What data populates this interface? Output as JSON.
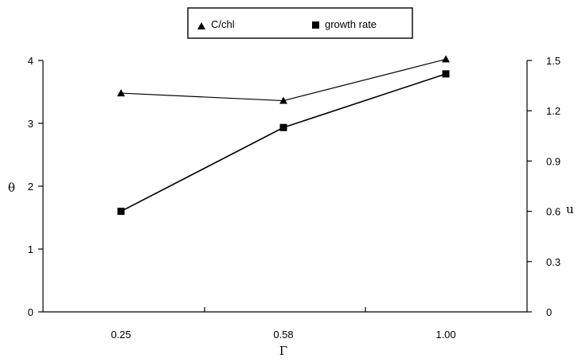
{
  "chart_data": {
    "type": "line",
    "title": "",
    "categories": [
      "0.25",
      "0.58",
      "1.00"
    ],
    "xlabel": "Γ",
    "ylabel_left": "θ",
    "ylabel_right": "u",
    "ylim_left": [
      0,
      4
    ],
    "yticks_left": [
      0,
      1,
      2,
      3,
      4
    ],
    "ylim_right": [
      0,
      1.5
    ],
    "yticks_right": [
      "0",
      "0.3",
      "0.6",
      "0.9",
      "1.2",
      "1.5"
    ],
    "grid": false,
    "legend_position": "top-center",
    "series": [
      {
        "name": "C/chl",
        "axis": "left",
        "marker": "triangle",
        "values": [
          3.48,
          3.36,
          4.02
        ]
      },
      {
        "name": "growth rate",
        "axis": "right",
        "marker": "square",
        "values": [
          0.6,
          1.1,
          1.42
        ]
      }
    ]
  }
}
